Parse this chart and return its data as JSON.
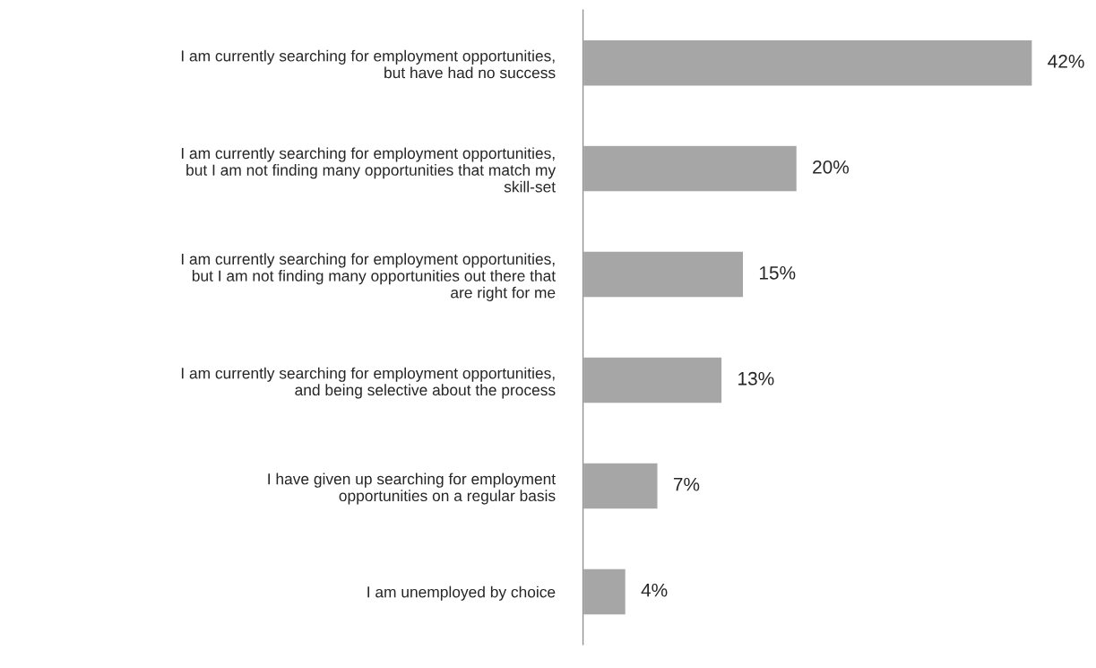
{
  "chart_data": {
    "type": "bar",
    "orientation": "horizontal",
    "categories": [
      "I am currently searching for employment opportunities,\nbut have had no success",
      "I am currently searching for employment opportunities,\nbut I am not finding many opportunities that match my\nskill-set",
      "I am currently searching for employment opportunities,\nbut I am not finding many opportunities out there that\nare right for me",
      "I am currently searching for employment opportunities,\nand being selective about the process",
      "I have given up searching for employment\nopportunities on a regular basis",
      "I am unemployed by choice"
    ],
    "values": [
      42,
      20,
      15,
      13,
      7,
      4
    ],
    "value_labels": [
      "42%",
      "20%",
      "15%",
      "13%",
      "7%",
      "4%"
    ],
    "color": "#a6a6a6",
    "grid": false,
    "legend": false
  }
}
